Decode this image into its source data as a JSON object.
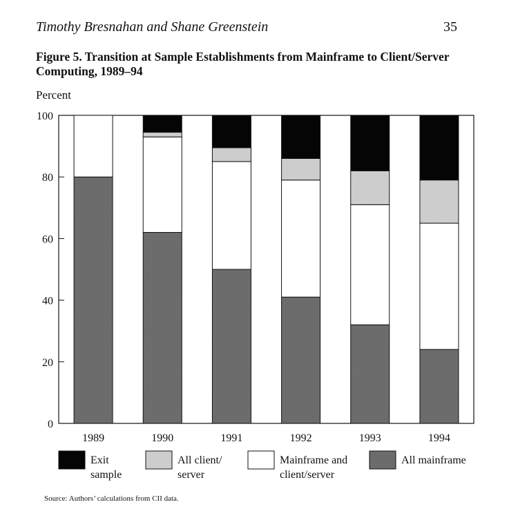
{
  "header": {
    "authors": "Timothy Bresnahan and Shane Greenstein",
    "page_number": "35"
  },
  "figure": {
    "title_line1": "Figure 5. Transition at Sample Establishments from Mainframe to Client/Server",
    "title_line2": "Computing, 1989–94",
    "source": "Source: Authors’ calculations from CII data."
  },
  "chart_data": {
    "type": "bar",
    "stacked": true,
    "title": "Figure 5. Transition at Sample Establishments from Mainframe to Client/Server Computing, 1989–94",
    "xlabel": "",
    "ylabel": "Percent",
    "ylim": [
      0,
      100
    ],
    "yticks": [
      0,
      20,
      40,
      60,
      80,
      100
    ],
    "grid": false,
    "legend_position": "bottom",
    "categories": [
      "1989",
      "1990",
      "1991",
      "1992",
      "1993",
      "1994"
    ],
    "series": [
      {
        "name": "All mainframe",
        "values": [
          80,
          62,
          50,
          41,
          32,
          24
        ],
        "color": "#6e6e6e"
      },
      {
        "name": "Mainframe and client/server",
        "values": [
          20,
          31,
          35,
          38,
          39,
          41
        ],
        "color": "#ffffff"
      },
      {
        "name": "All client/ server",
        "values": [
          0,
          1.5,
          4.5,
          7,
          11,
          14
        ],
        "color": "#cfcfcf"
      },
      {
        "name": "Exit sample",
        "values": [
          0,
          5.5,
          10.5,
          14,
          18,
          21
        ],
        "color": "#050505"
      }
    ],
    "legend_order": [
      "Exit sample",
      "All client/ server",
      "Mainframe and client/server",
      "All mainframe"
    ],
    "legend_labels": {
      "Exit sample": [
        "Exit",
        "sample"
      ],
      "All client/ server": [
        "All client/",
        "server"
      ],
      "Mainframe and client/server": [
        "Mainframe and",
        "client/server"
      ],
      "All mainframe": [
        "All mainframe"
      ]
    }
  }
}
